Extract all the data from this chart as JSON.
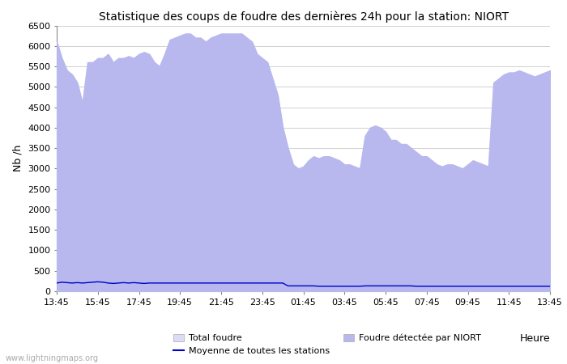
{
  "title": "Statistique des coups de foudre des dernières 24h pour la station: NIORT",
  "xlabel": "Heure",
  "ylabel": "Nb /h",
  "ylim": [
    0,
    6500
  ],
  "yticks": [
    0,
    500,
    1000,
    1500,
    2000,
    2500,
    3000,
    3500,
    4000,
    4500,
    5000,
    5500,
    6000,
    6500
  ],
  "xtick_labels": [
    "13:45",
    "15:45",
    "17:45",
    "19:45",
    "21:45",
    "23:45",
    "01:45",
    "03:45",
    "05:45",
    "07:45",
    "09:45",
    "11:45",
    "13:45"
  ],
  "background_color": "#ffffff",
  "plot_bg_color": "#ffffff",
  "grid_color": "#d0d0d0",
  "total_foudre_color": "#dcdcf5",
  "niort_foudre_color": "#b8b8ee",
  "moyenne_color": "#0000cc",
  "watermark": "www.lightningmaps.org",
  "legend_labels": [
    "Total foudre",
    "Foudre détectée par NIORT",
    "Moyenne de toutes les stations"
  ],
  "time_hours": [
    13.75,
    14.0,
    14.25,
    14.5,
    14.75,
    15.0,
    15.25,
    15.5,
    15.75,
    16.0,
    16.25,
    16.5,
    16.75,
    17.0,
    17.25,
    17.5,
    17.75,
    18.0,
    18.25,
    18.5,
    18.75,
    19.0,
    19.25,
    19.5,
    19.75,
    20.0,
    20.25,
    20.5,
    20.75,
    21.0,
    21.25,
    21.5,
    21.75,
    22.0,
    22.25,
    22.5,
    22.75,
    23.0,
    23.25,
    23.5,
    23.75,
    24.0,
    24.25,
    24.5,
    24.75,
    25.0,
    25.25,
    25.5,
    25.75,
    26.0,
    26.25,
    26.5,
    26.75,
    27.0,
    27.25,
    27.5,
    27.75,
    28.0,
    28.25,
    28.5,
    28.75,
    29.0,
    29.25,
    29.5,
    29.75,
    30.0,
    30.25,
    30.5,
    30.75,
    31.0,
    31.25,
    31.5,
    31.75,
    32.0,
    32.25,
    32.5,
    32.75,
    33.0,
    33.25,
    33.5,
    33.75,
    34.0,
    34.25,
    34.5,
    34.75,
    35.0,
    35.25,
    35.5,
    35.75,
    36.0,
    36.25,
    36.5,
    36.75,
    37.0,
    37.25,
    37.5,
    37.75
  ],
  "total_foudre_values": [
    6100,
    5700,
    5400,
    5300,
    5100,
    4600,
    5600,
    5600,
    5700,
    5700,
    5800,
    5600,
    5700,
    5700,
    5750,
    5700,
    5800,
    5850,
    5800,
    5600,
    5500,
    5800,
    6150,
    6200,
    6250,
    6300,
    6300,
    6200,
    6200,
    6100,
    6200,
    6250,
    6300,
    6300,
    6300,
    6300,
    6300,
    6200,
    6100,
    5800,
    5700,
    5600,
    5200,
    4800,
    4000,
    3500,
    3100,
    3000,
    3050,
    3200,
    3300,
    3250,
    3300,
    3300,
    3250,
    3200,
    3100,
    3100,
    3050,
    3000,
    3800,
    4000,
    4050,
    4000,
    3900,
    3700,
    3700,
    3600,
    3600,
    3500,
    3400,
    3300,
    3300,
    3200,
    3100,
    3050,
    3100,
    3100,
    3050,
    3000,
    3100,
    3200,
    3150,
    3100,
    3050,
    5100,
    5200,
    5300,
    5350,
    5350,
    5400,
    5350,
    5300,
    5250,
    5300,
    5350,
    5400
  ],
  "niort_foudre_values": [
    6100,
    5700,
    5400,
    5300,
    5100,
    4600,
    5600,
    5600,
    5700,
    5700,
    5800,
    5600,
    5700,
    5700,
    5750,
    5700,
    5800,
    5850,
    5800,
    5600,
    5500,
    5800,
    6150,
    6200,
    6250,
    6300,
    6300,
    6200,
    6200,
    6100,
    6200,
    6250,
    6300,
    6300,
    6300,
    6300,
    6300,
    6200,
    6100,
    5800,
    5700,
    5600,
    5200,
    4800,
    4000,
    3500,
    3100,
    3000,
    3050,
    3200,
    3300,
    3250,
    3300,
    3300,
    3250,
    3200,
    3100,
    3100,
    3050,
    3000,
    3800,
    4000,
    4050,
    4000,
    3900,
    3700,
    3700,
    3600,
    3600,
    3500,
    3400,
    3300,
    3300,
    3200,
    3100,
    3050,
    3100,
    3100,
    3050,
    3000,
    3100,
    3200,
    3150,
    3100,
    3050,
    5100,
    5200,
    5300,
    5350,
    5350,
    5400,
    5350,
    5300,
    5250,
    5300,
    5350,
    5400
  ],
  "moyenne_values": [
    200,
    220,
    210,
    200,
    210,
    200,
    210,
    220,
    230,
    220,
    200,
    190,
    200,
    210,
    200,
    210,
    200,
    190,
    200,
    200,
    200,
    200,
    200,
    200,
    200,
    200,
    200,
    200,
    200,
    200,
    200,
    200,
    200,
    200,
    200,
    200,
    200,
    200,
    200,
    200,
    200,
    200,
    200,
    200,
    200,
    130,
    130,
    130,
    130,
    130,
    130,
    120,
    120,
    120,
    120,
    120,
    120,
    120,
    120,
    120,
    130,
    130,
    130,
    130,
    130,
    130,
    130,
    130,
    130,
    130,
    120,
    120,
    120,
    120,
    120,
    120,
    120,
    120,
    120,
    120,
    120,
    120,
    120,
    120,
    120,
    120,
    120,
    120,
    120,
    120,
    120,
    120,
    120,
    120,
    120,
    120,
    120
  ],
  "figsize": [
    7.0,
    4.5
  ],
  "dpi": 100
}
